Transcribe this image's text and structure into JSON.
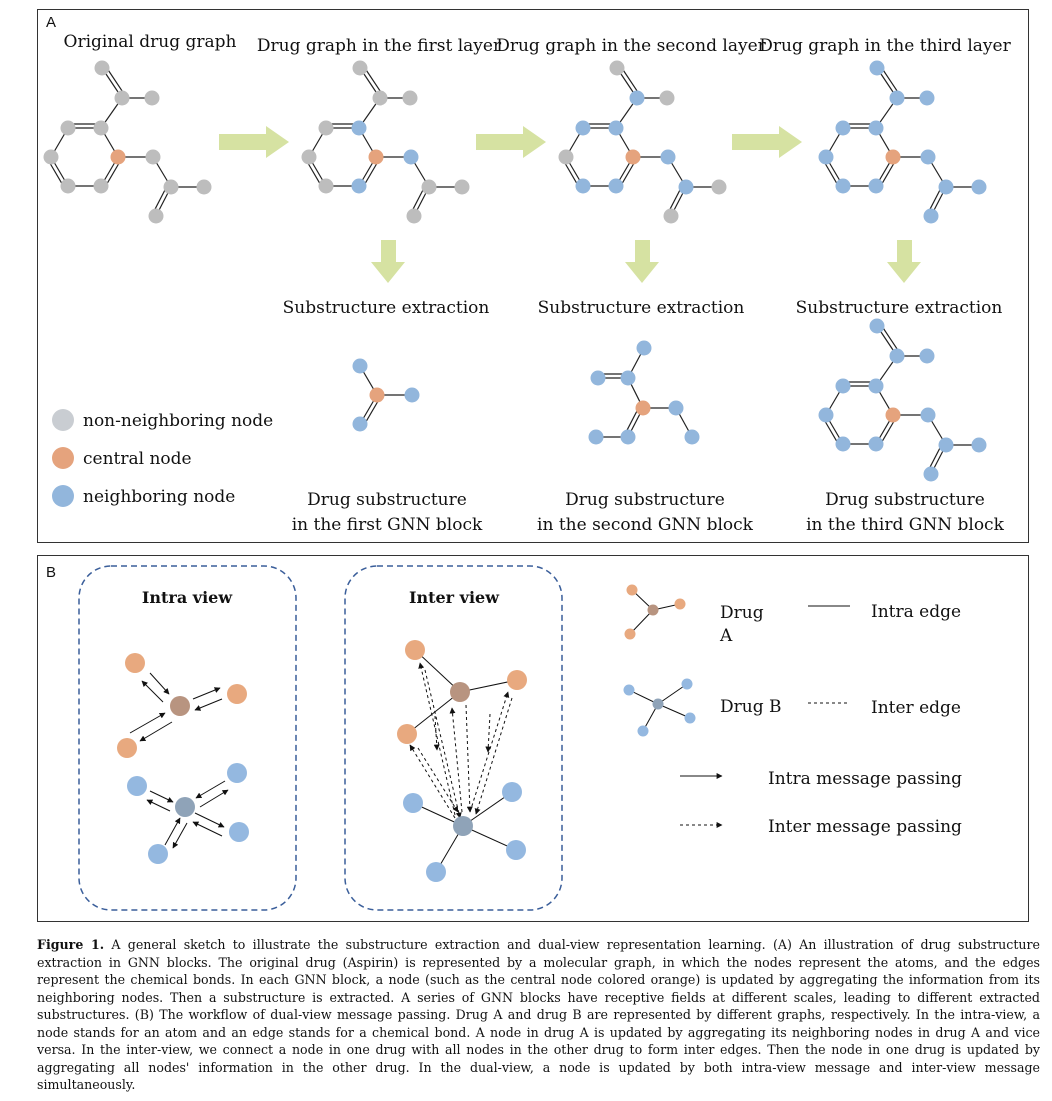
{
  "panel_a": {
    "letter": "A",
    "titles": {
      "original": "Original drug graph",
      "layer1": "Drug graph in the first layer",
      "layer2": "Drug graph in the second layer",
      "layer3": "Drug graph in the third layer"
    },
    "extraction_label": "Substructure extraction",
    "substructures": {
      "first": [
        "Drug substructure",
        "in the first GNN block"
      ],
      "second": [
        "Drug substructure",
        "in the second GNN block"
      ],
      "third": [
        "Drug substructure",
        "in the third GNN block"
      ]
    },
    "legend": {
      "non_neighboring": "non-neighboring node",
      "central": "central node",
      "neighboring": "neighboring node"
    },
    "colors": {
      "gray": "#bdbdbd",
      "orange": "#e5a37d",
      "blue": "#92b6dc",
      "arrow": "#d6e2a2"
    }
  },
  "panel_b": {
    "letter": "B",
    "intra_title": "Intra view",
    "inter_title": "Inter view",
    "legend": {
      "drug_a": [
        "Drug",
        "A"
      ],
      "drug_b": "Drug B",
      "intra_edge": "Intra edge",
      "inter_edge": "Inter edge",
      "intra_msg": "Intra message passing",
      "inter_msg": "Inter message passing"
    },
    "colors": {
      "orange": "#e8a97f",
      "orange_center": "#b89480",
      "blue": "#94b8e0",
      "blue_center": "#8fa3b8",
      "frame": "#3a5e9a"
    }
  },
  "caption": {
    "label": "Figure 1.",
    "text": " A general sketch to illustrate the substructure extraction and dual-view representation learning. (A) An illustration of drug substructure extraction in GNN blocks. The original drug (Aspirin) is represented by a molecular graph, in which the nodes represent the atoms, and the edges represent the chemical bonds. In each GNN block, a node (such as the central node colored orange) is updated by aggregating the information from its neighboring nodes. Then a substructure is extracted. A series of GNN blocks have receptive fields at different scales, leading to different extracted substructures. (B) The workflow of dual-view message passing. Drug A and drug B are represented by different graphs, respectively. In the intra-view, a node stands for an atom and an edge stands for a chemical bond. A node in drug A is updated by aggregating its neighboring nodes in drug A and vice versa. In the inter-view, we connect a node in one drug with all nodes in the other drug to form inter edges. Then the node in one drug is updated by aggregating all nodes' information in the other drug. In the dual-view, a node is updated by both intra-view message and inter-view message simultaneously."
  }
}
